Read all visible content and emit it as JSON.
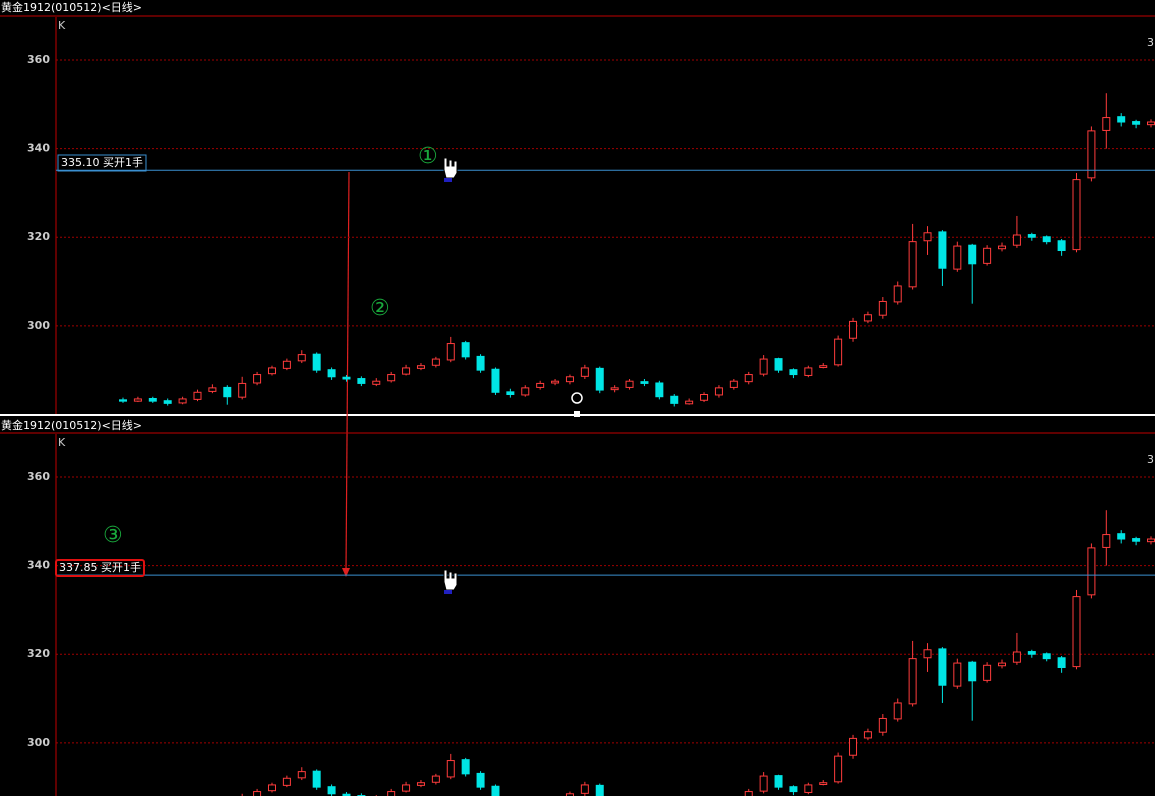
{
  "candles": {
    "open": [
      283.3,
      283,
      283.6,
      283.1,
      282.6,
      283.4,
      285.2,
      286.1,
      283.9,
      287.1,
      289.2,
      290.4,
      292.1,
      293.6,
      290.1,
      288.4,
      288.1,
      286.8,
      287.6,
      289.1,
      290.4,
      291.1,
      292.3,
      296.2,
      293.1,
      290.2,
      285.1,
      284.4,
      286.1,
      287.1,
      287.4,
      288.6,
      290.4,
      285.6,
      286.1,
      287.4,
      287.1,
      284.1,
      282.4,
      283.2,
      284.4,
      286.1,
      287.4,
      289.1,
      292.6,
      290.1,
      288.8,
      290.6,
      291.2,
      297.2,
      301.1,
      302.4,
      305.4,
      308.8,
      319.2,
      321.2,
      312.8,
      318.2,
      314.1,
      317.4,
      318.2,
      320.6,
      320.1,
      319.2,
      317.2,
      333.4,
      344.1,
      347.2,
      346.1,
      345.4
    ],
    "high": [
      283.8,
      284,
      284,
      283.6,
      284,
      285.6,
      286.8,
      286.6,
      288.5,
      289.6,
      291,
      292.6,
      294.5,
      294,
      290.6,
      288.9,
      288.6,
      288.2,
      289.6,
      291.2,
      291.6,
      293,
      297.5,
      296.6,
      293.6,
      290.6,
      285.8,
      286.6,
      287.6,
      288,
      289,
      291.2,
      290.8,
      286.6,
      288,
      288,
      287.6,
      284.6,
      283.6,
      285,
      286.6,
      288,
      289.6,
      293.4,
      292.8,
      290.4,
      291,
      291.6,
      297.8,
      301.8,
      303.2,
      306.5,
      310,
      323,
      322.5,
      321.6,
      319,
      318.5,
      318.2,
      318.8,
      324.8,
      321,
      320.4,
      319.6,
      334.5,
      345,
      352.5,
      348,
      346.5,
      346.6
    ],
    "low": [
      282.6,
      282.8,
      282.6,
      282,
      282.3,
      283,
      284.8,
      282.2,
      283.4,
      286.6,
      288.8,
      290,
      291.6,
      289.4,
      287.8,
      287.4,
      286.4,
      286.4,
      287.2,
      288.8,
      290,
      290.6,
      291.8,
      292.4,
      289.4,
      284.4,
      283.8,
      284,
      285.6,
      286.6,
      286.8,
      288,
      284.8,
      285,
      285.6,
      286.4,
      283.4,
      281.8,
      282.2,
      282.8,
      283.8,
      285.6,
      286.8,
      288.6,
      289.4,
      288.2,
      288.4,
      290.4,
      290.8,
      296.4,
      300.6,
      301.6,
      304.8,
      308.2,
      316,
      309,
      312.2,
      305,
      313.6,
      316.8,
      317.6,
      319.2,
      318.4,
      315.8,
      316.6,
      332.6,
      340,
      345,
      344.6,
      344.8
    ],
    "close": [
      283,
      283.5,
      283,
      282.5,
      283.5,
      285,
      286,
      284,
      287,
      289,
      290.5,
      292,
      293.5,
      290,
      288.5,
      288,
      287,
      287.5,
      289,
      290.5,
      291,
      292.5,
      296,
      293,
      290,
      285,
      284.5,
      286,
      287,
      287.5,
      288.5,
      290.5,
      285.5,
      286,
      287.5,
      287,
      284,
      282.5,
      283,
      284.5,
      286,
      287.5,
      289,
      292.5,
      290,
      289,
      290.5,
      291,
      297,
      301,
      302.5,
      305.5,
      309,
      319,
      321,
      313,
      318,
      314,
      317.5,
      318,
      320.5,
      320,
      319,
      317,
      333,
      344,
      347,
      346,
      345.5,
      346
    ]
  },
  "panels": [
    {
      "header": "黄金1912(010512)<日线>",
      "type_label": "K",
      "corner_label": "3",
      "ylim": [
        280.1,
        369.7
      ],
      "yticks": [
        300,
        320,
        340,
        360
      ],
      "order": {
        "value": 335.1,
        "label": "335.10 买开1手"
      },
      "marker": "①"
    },
    {
      "header": "黄金1912(010512)<日线>",
      "type_label": "K",
      "corner_label": "3",
      "ylim": [
        288.0,
        369.7
      ],
      "yticks": [
        300,
        320,
        340,
        360
      ],
      "order": {
        "value": 337.85,
        "label": "337.85 买开1手"
      },
      "marker": "③"
    }
  ],
  "arrow_marker": "②"
}
